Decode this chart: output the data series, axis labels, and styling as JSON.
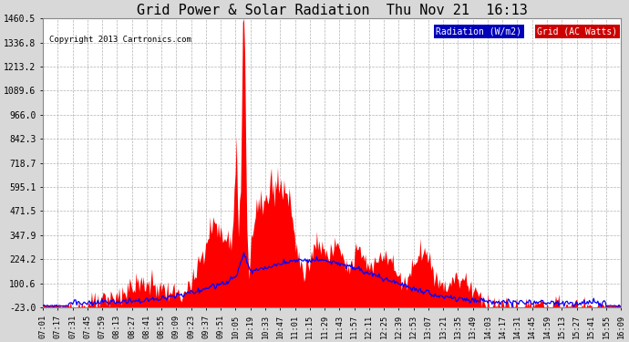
{
  "title": "Grid Power & Solar Radiation  Thu Nov 21  16:13",
  "copyright": "Copyright 2013 Cartronics.com",
  "yticks": [
    -23.0,
    100.6,
    224.2,
    347.9,
    471.5,
    595.1,
    718.7,
    842.3,
    966.0,
    1089.6,
    1213.2,
    1336.8,
    1460.5
  ],
  "ymin": -23.0,
  "ymax": 1460.5,
  "bg_color": "#d8d8d8",
  "plot_bg_color": "#ffffff",
  "grid_color": "#aaaaaa",
  "legend_radiation_bg": "#0000bb",
  "legend_grid_bg": "#cc0000",
  "legend_radiation_text": "Radiation (W/m2)",
  "legend_grid_text": "Grid (AC Watts)",
  "radiation_line_color": "#0000ff",
  "grid_fill_color": "#ff0000",
  "xtick_labels": [
    "07:01",
    "07:17",
    "07:31",
    "07:45",
    "07:59",
    "08:13",
    "08:27",
    "08:41",
    "08:55",
    "09:09",
    "09:23",
    "09:37",
    "09:51",
    "10:05",
    "10:19",
    "10:33",
    "10:47",
    "11:01",
    "11:15",
    "11:29",
    "11:43",
    "11:57",
    "12:11",
    "12:25",
    "12:39",
    "12:53",
    "13:07",
    "13:21",
    "13:35",
    "13:49",
    "14:03",
    "14:17",
    "14:31",
    "14:45",
    "14:59",
    "15:13",
    "15:27",
    "15:41",
    "15:55",
    "16:09"
  ],
  "n_points": 548
}
